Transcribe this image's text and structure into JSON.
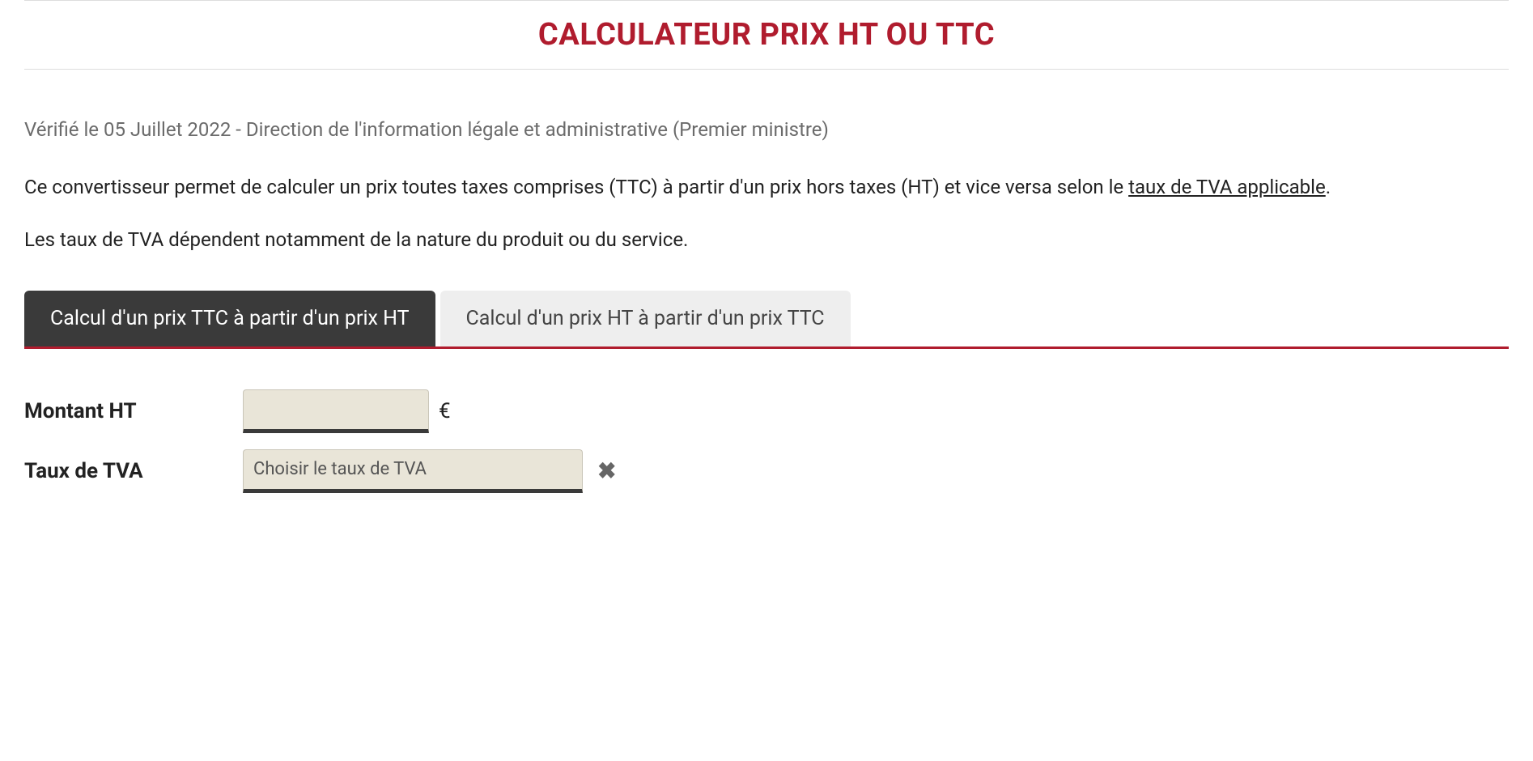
{
  "title": "CALCULATEUR PRIX HT OU TTC",
  "meta": "Vérifié le 05 Juillet 2022 - Direction de l'information légale et administrative (Premier ministre)",
  "intro_before_link": "Ce convertisseur permet de calculer un prix toutes taxes comprises (TTC) à partir d'un prix hors taxes (HT) et vice versa selon le ",
  "intro_link": "taux de TVA applicable",
  "intro_after_link": ".",
  "para2": "Les taux de TVA dépendent notamment de la nature du produit ou du service.",
  "tabs": {
    "active": "Calcul d'un prix TTC à partir d'un prix HT",
    "inactive": "Calcul d'un prix HT à partir d'un prix TTC"
  },
  "form": {
    "montant_label": "Montant HT",
    "montant_value": "",
    "montant_unit": "€",
    "taux_label": "Taux de TVA",
    "taux_placeholder": "Choisir le taux de TVA",
    "clear_symbol": "✖"
  },
  "colors": {
    "accent": "#b01c2e",
    "tab_active_bg": "#3a3a3a",
    "tab_inactive_bg": "#eeeeee",
    "input_bg": "#e9e5d8",
    "meta_text": "#6b6b6b"
  }
}
